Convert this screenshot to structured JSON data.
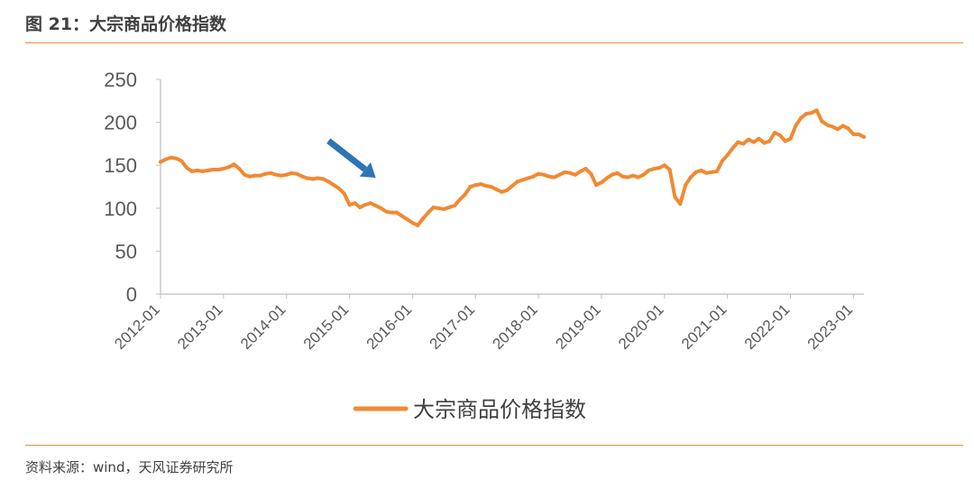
{
  "figure": {
    "title": "图 21：大宗商品价格指数",
    "source": "资料来源：wind，天风证券研究所"
  },
  "colors": {
    "series": "#F08A33",
    "arrow": "#2E75B6",
    "rule": "#E8913E",
    "axis": "#BFBFBF",
    "text": "#595959"
  },
  "chart_data": {
    "type": "line",
    "title": "",
    "xlabel": "",
    "ylabel": "",
    "ylim": [
      0,
      250
    ],
    "yticks": [
      0,
      50,
      100,
      150,
      200,
      250
    ],
    "xticks": [
      "2012-01",
      "2013-01",
      "2014-01",
      "2015-01",
      "2016-01",
      "2017-01",
      "2018-01",
      "2019-01",
      "2020-01",
      "2021-01",
      "2022-01",
      "2023-01"
    ],
    "xlim": [
      "2012-01",
      "2023-03"
    ],
    "grid": false,
    "legend": "bottom-center",
    "annotations": [
      {
        "type": "arrow",
        "from": "2014-09",
        "to": "2015-06",
        "pointing_at_value": 125
      }
    ],
    "series": [
      {
        "name": "大宗商品价格指数",
        "x": [
          "2012-01",
          "2012-02",
          "2012-03",
          "2012-04",
          "2012-05",
          "2012-06",
          "2012-07",
          "2012-08",
          "2012-09",
          "2012-10",
          "2012-11",
          "2012-12",
          "2013-01",
          "2013-02",
          "2013-03",
          "2013-04",
          "2013-05",
          "2013-06",
          "2013-07",
          "2013-08",
          "2013-09",
          "2013-10",
          "2013-11",
          "2013-12",
          "2014-01",
          "2014-02",
          "2014-03",
          "2014-04",
          "2014-05",
          "2014-06",
          "2014-07",
          "2014-08",
          "2014-09",
          "2014-10",
          "2014-11",
          "2014-12",
          "2015-01",
          "2015-02",
          "2015-03",
          "2015-04",
          "2015-05",
          "2015-06",
          "2015-07",
          "2015-08",
          "2015-09",
          "2015-10",
          "2015-11",
          "2015-12",
          "2016-01",
          "2016-02",
          "2016-03",
          "2016-04",
          "2016-05",
          "2016-06",
          "2016-07",
          "2016-08",
          "2016-09",
          "2016-10",
          "2016-11",
          "2016-12",
          "2017-01",
          "2017-02",
          "2017-03",
          "2017-04",
          "2017-05",
          "2017-06",
          "2017-07",
          "2017-08",
          "2017-09",
          "2017-10",
          "2017-11",
          "2017-12",
          "2018-01",
          "2018-02",
          "2018-03",
          "2018-04",
          "2018-05",
          "2018-06",
          "2018-07",
          "2018-08",
          "2018-09",
          "2018-10",
          "2018-11",
          "2018-12",
          "2019-01",
          "2019-02",
          "2019-03",
          "2019-04",
          "2019-05",
          "2019-06",
          "2019-07",
          "2019-08",
          "2019-09",
          "2019-10",
          "2019-11",
          "2019-12",
          "2020-01",
          "2020-02",
          "2020-03",
          "2020-04",
          "2020-05",
          "2020-06",
          "2020-07",
          "2020-08",
          "2020-09",
          "2020-10",
          "2020-11",
          "2020-12",
          "2021-01",
          "2021-02",
          "2021-03",
          "2021-04",
          "2021-05",
          "2021-06",
          "2021-07",
          "2021-08",
          "2021-09",
          "2021-10",
          "2021-11",
          "2021-12",
          "2022-01",
          "2022-02",
          "2022-03",
          "2022-04",
          "2022-05",
          "2022-06",
          "2022-07",
          "2022-08",
          "2022-09",
          "2022-10",
          "2022-11",
          "2022-12",
          "2023-01",
          "2023-02",
          "2023-03"
        ],
        "values": [
          154,
          157,
          159,
          158,
          155,
          147,
          143,
          144,
          143,
          144,
          145,
          145,
          146,
          148,
          151,
          146,
          139,
          137,
          138,
          138,
          140,
          141,
          139,
          138,
          139,
          141,
          140,
          137,
          135,
          134,
          135,
          134,
          131,
          127,
          123,
          117,
          104,
          106,
          101,
          104,
          106,
          103,
          100,
          96,
          95,
          95,
          91,
          87,
          83,
          80,
          88,
          95,
          101,
          100,
          99,
          101,
          103,
          110,
          116,
          125,
          127,
          128,
          126,
          125,
          122,
          119,
          121,
          126,
          131,
          133,
          135,
          137,
          140,
          139,
          137,
          136,
          139,
          142,
          141,
          139,
          143,
          146,
          140,
          127,
          130,
          135,
          139,
          141,
          137,
          136,
          138,
          136,
          139,
          144,
          146,
          147,
          150,
          145,
          113,
          105,
          127,
          136,
          142,
          144,
          141,
          142,
          143,
          155,
          162,
          170,
          177,
          175,
          180,
          177,
          181,
          176,
          178,
          188,
          185,
          178,
          181,
          196,
          205,
          210,
          211,
          214,
          201,
          197,
          195,
          192,
          196,
          193,
          186,
          186,
          183
        ]
      }
    ]
  }
}
